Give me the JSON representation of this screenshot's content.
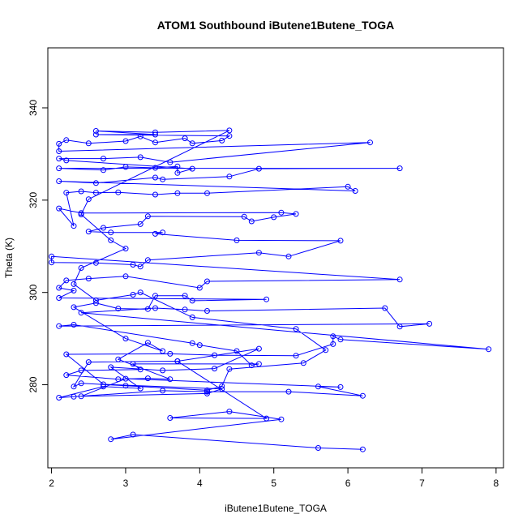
{
  "chart_data": {
    "type": "scatter",
    "title": "ATOM1 Southbound iButene1Butene_TOGA",
    "xlabel": "iButene1Butene_TOGA",
    "ylabel": "Theta (K)",
    "xlim": [
      1.95,
      8.1
    ],
    "ylim": [
      262,
      353
    ],
    "xticks": [
      2,
      3,
      4,
      5,
      6,
      7,
      8
    ],
    "yticks": [
      280,
      300,
      320,
      340
    ],
    "connected": true,
    "marker": "open-circle",
    "color": "#0000ff",
    "grid": false,
    "points": [
      [
        6.2,
        266
      ],
      [
        5.6,
        266.3
      ],
      [
        3.1,
        269.2
      ],
      [
        2.8,
        268.2
      ],
      [
        5.1,
        272.5
      ],
      [
        4.4,
        274.2
      ],
      [
        3.6,
        272.8
      ],
      [
        4.9,
        272.7
      ],
      [
        3.7,
        285.1
      ],
      [
        4.8,
        287.8
      ],
      [
        4.2,
        283.5
      ],
      [
        3.5,
        283.1
      ],
      [
        2.8,
        283.8
      ],
      [
        3.2,
        279.2
      ],
      [
        2.7,
        279.6
      ],
      [
        2.1,
        277.2
      ],
      [
        2.3,
        277.4
      ],
      [
        3.5,
        278.7
      ],
      [
        4.1,
        278.5
      ],
      [
        5.2,
        278.5
      ],
      [
        6.2,
        277.6
      ],
      [
        5.6,
        279.6
      ],
      [
        5.9,
        279.5
      ],
      [
        3.0,
        281.3
      ],
      [
        2.4,
        277.5
      ],
      [
        4.1,
        278.1
      ],
      [
        4.3,
        279.1
      ],
      [
        2.7,
        280.1
      ],
      [
        2.2,
        286.6
      ],
      [
        3.6,
        286.7
      ],
      [
        4.2,
        286.4
      ],
      [
        5.3,
        286.3
      ],
      [
        5.8,
        288.8
      ],
      [
        5.8,
        290.5
      ],
      [
        5.9,
        289.8
      ],
      [
        7.9,
        287.7
      ],
      [
        2.4,
        295.6
      ],
      [
        3.4,
        296.6
      ],
      [
        3.8,
        296.3
      ],
      [
        4.1,
        296
      ],
      [
        6.5,
        296.6
      ],
      [
        6.7,
        292.6
      ],
      [
        7.1,
        293.2
      ],
      [
        2.1,
        292.7
      ],
      [
        2.3,
        293
      ],
      [
        3.9,
        289
      ],
      [
        4.0,
        288.6
      ],
      [
        4.5,
        287.3
      ],
      [
        4.7,
        284.2
      ],
      [
        4.8,
        284.5
      ],
      [
        3.1,
        284.5
      ],
      [
        3.2,
        283.3
      ],
      [
        2.4,
        283.1
      ],
      [
        2.2,
        282.1
      ],
      [
        2.9,
        281.2
      ],
      [
        3.3,
        281.4
      ],
      [
        3.6,
        281.2
      ],
      [
        2.9,
        285.5
      ],
      [
        3.3,
        289.1
      ],
      [
        3.5,
        287.3
      ],
      [
        3.0,
        290
      ],
      [
        2.3,
        296.8
      ],
      [
        2.6,
        297.7
      ],
      [
        2.9,
        296.5
      ],
      [
        3.3,
        296.4
      ],
      [
        3.4,
        299.3
      ],
      [
        3.8,
        299.3
      ],
      [
        3.9,
        298.2
      ],
      [
        4.9,
        298.5
      ],
      [
        2.1,
        298.8
      ],
      [
        2.3,
        300.4
      ],
      [
        2.1,
        301
      ],
      [
        2.2,
        302.6
      ],
      [
        2.5,
        303
      ],
      [
        3.0,
        303.5
      ],
      [
        4.0,
        301
      ],
      [
        4.1,
        302.4
      ],
      [
        6.7,
        302.8
      ],
      [
        2.0,
        307.8
      ],
      [
        2.0,
        306.5
      ],
      [
        2.6,
        306.4
      ],
      [
        3.1,
        306
      ],
      [
        3.2,
        305.6
      ],
      [
        3.3,
        307
      ],
      [
        4.8,
        308.6
      ],
      [
        5.2,
        307.8
      ],
      [
        5.9,
        311.2
      ],
      [
        4.5,
        311.3
      ],
      [
        3.4,
        312.7
      ],
      [
        3.5,
        313
      ],
      [
        2.8,
        313
      ],
      [
        2.5,
        313.2
      ],
      [
        2.7,
        314
      ],
      [
        3.2,
        314.8
      ],
      [
        3.3,
        316.5
      ],
      [
        4.6,
        316.4
      ],
      [
        4.7,
        315.4
      ],
      [
        5.0,
        316.3
      ],
      [
        5.3,
        317
      ],
      [
        5.1,
        317.3
      ],
      [
        2.4,
        317.2
      ],
      [
        2.1,
        318.2
      ],
      [
        2.3,
        314.4
      ],
      [
        2.2,
        321.6
      ],
      [
        2.4,
        321.9
      ],
      [
        2.6,
        321.6
      ],
      [
        2.9,
        321.7
      ],
      [
        3.4,
        321.2
      ],
      [
        3.7,
        321.5
      ],
      [
        4.1,
        321.5
      ],
      [
        6.0,
        322.9
      ],
      [
        6.1,
        322
      ],
      [
        2.1,
        324.1
      ],
      [
        2.6,
        323.7
      ],
      [
        3.4,
        324.9
      ],
      [
        3.5,
        324.5
      ],
      [
        4.4,
        325.1
      ],
      [
        4.8,
        326.8
      ],
      [
        6.7,
        326.9
      ],
      [
        2.1,
        326.9
      ],
      [
        2.7,
        326.5
      ],
      [
        3.0,
        327.2
      ],
      [
        3.4,
        327
      ],
      [
        3.7,
        327.3
      ],
      [
        3.7,
        325.9
      ],
      [
        3.9,
        326.8
      ],
      [
        2.2,
        328.6
      ],
      [
        2.1,
        329
      ],
      [
        2.7,
        329
      ],
      [
        3.2,
        329.3
      ],
      [
        3.6,
        328.2
      ],
      [
        6.3,
        332.5
      ],
      [
        2.1,
        330.6
      ],
      [
        2.1,
        332.2
      ],
      [
        2.2,
        333
      ],
      [
        2.5,
        332.3
      ],
      [
        3.0,
        332.8
      ],
      [
        3.2,
        333.8
      ],
      [
        3.4,
        332.5
      ],
      [
        3.8,
        333.4
      ],
      [
        3.9,
        332.3
      ],
      [
        4.3,
        332.9
      ],
      [
        4.4,
        333.9
      ],
      [
        2.6,
        334.2
      ],
      [
        3.4,
        334.2
      ],
      [
        2.6,
        335
      ],
      [
        3.4,
        334.7
      ],
      [
        4.4,
        335.1
      ],
      [
        2.5,
        320.2
      ],
      [
        2.4,
        316.9
      ],
      [
        2.8,
        311.3
      ],
      [
        3.0,
        309.5
      ],
      [
        2.4,
        305.3
      ],
      [
        2.3,
        301.8
      ],
      [
        2.6,
        298.3
      ],
      [
        3.1,
        299.5
      ],
      [
        3.2,
        300
      ],
      [
        3.9,
        294.6
      ],
      [
        5.3,
        292.1
      ],
      [
        5.7,
        287.5
      ],
      [
        5.4,
        284.7
      ],
      [
        4.4,
        283.4
      ],
      [
        4.3,
        279.7
      ],
      [
        4.1,
        278.8
      ],
      [
        3.0,
        279.8
      ],
      [
        2.4,
        280.3
      ],
      [
        2.3,
        279.6
      ],
      [
        2.5,
        284.9
      ],
      [
        3.7,
        285.1
      ]
    ]
  }
}
